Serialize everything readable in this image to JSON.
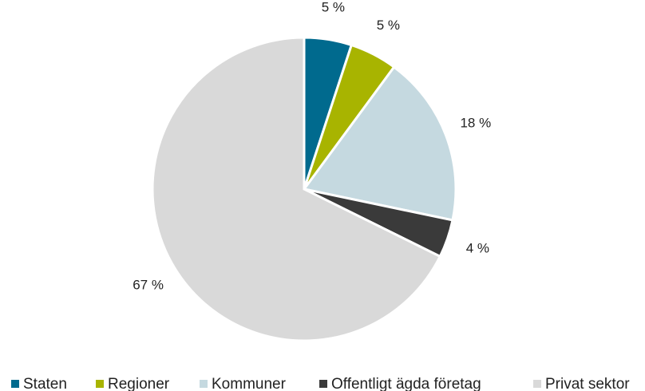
{
  "chart_data": {
    "type": "pie",
    "categories": [
      "Staten",
      "Regioner",
      "Kommuner",
      "Offentligt ägda företag",
      "Privat sektor"
    ],
    "values": [
      5,
      5,
      18,
      4,
      67
    ],
    "value_labels": [
      "5 %",
      "5 %",
      "18 %",
      "4 %",
      "67 %"
    ],
    "colors": [
      "#006a8e",
      "#a8b400",
      "#c5d9e0",
      "#3a3a3a",
      "#d9d9d9"
    ],
    "legend": "bottom"
  }
}
